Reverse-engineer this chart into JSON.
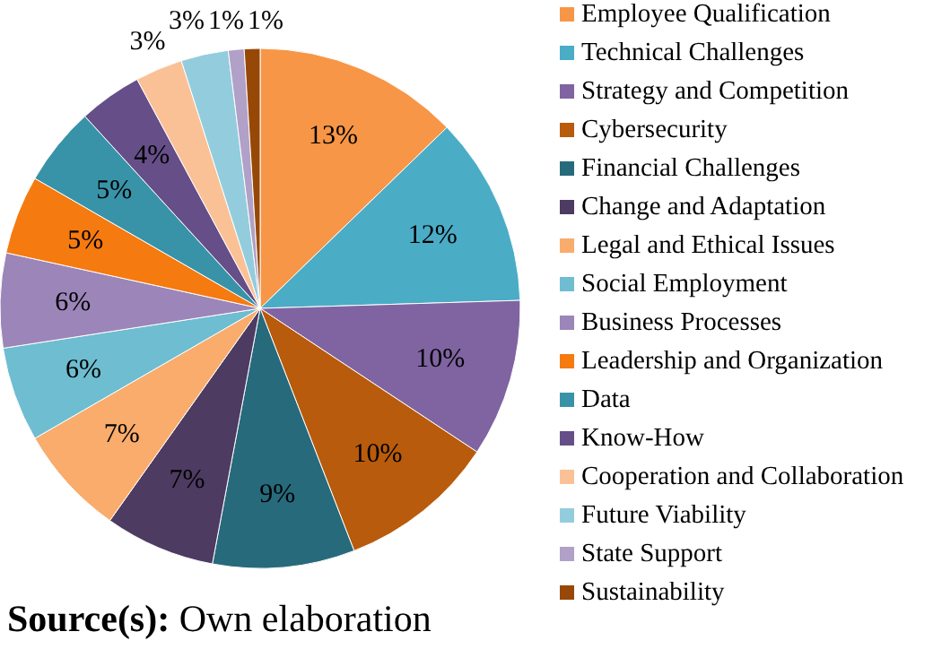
{
  "chart_data": {
    "type": "pie",
    "categories": [
      "Employee Qualification",
      "Technical Challenges",
      "Strategy and Competition",
      "Cybersecurity",
      "Financial Challenges",
      "Change and Adaptation",
      "Legal and Ethical Issues",
      "Social Employment",
      "Business Processes",
      "Leadership and Organization",
      "Data",
      "Know-How",
      "Cooperation and Collaboration",
      "Future Viability",
      "State Support",
      "Sustainability"
    ],
    "values": [
      13,
      12,
      10,
      10,
      9,
      7,
      7,
      6,
      6,
      5,
      5,
      4,
      3,
      3,
      1,
      1
    ],
    "value_labels": [
      "13%",
      "12%",
      "10%",
      "10%",
      "9%",
      "7%",
      "7%",
      "6%",
      "6%",
      "5%",
      "5%",
      "4%",
      "3%",
      "3%",
      "1%",
      "1%"
    ],
    "colors": [
      "#f79646",
      "#4bacc6",
      "#8064a2",
      "#b85b0c",
      "#276a7c",
      "#4d3b62",
      "#f9ac6c",
      "#6ebdd1",
      "#9c85b8",
      "#f57a10",
      "#3893a8",
      "#664f88",
      "#fbc196",
      "#93cddd",
      "#b1a0c7",
      "#974806"
    ],
    "legend": "right",
    "annotations": [
      "Source(s): Own elaboration"
    ]
  }
}
